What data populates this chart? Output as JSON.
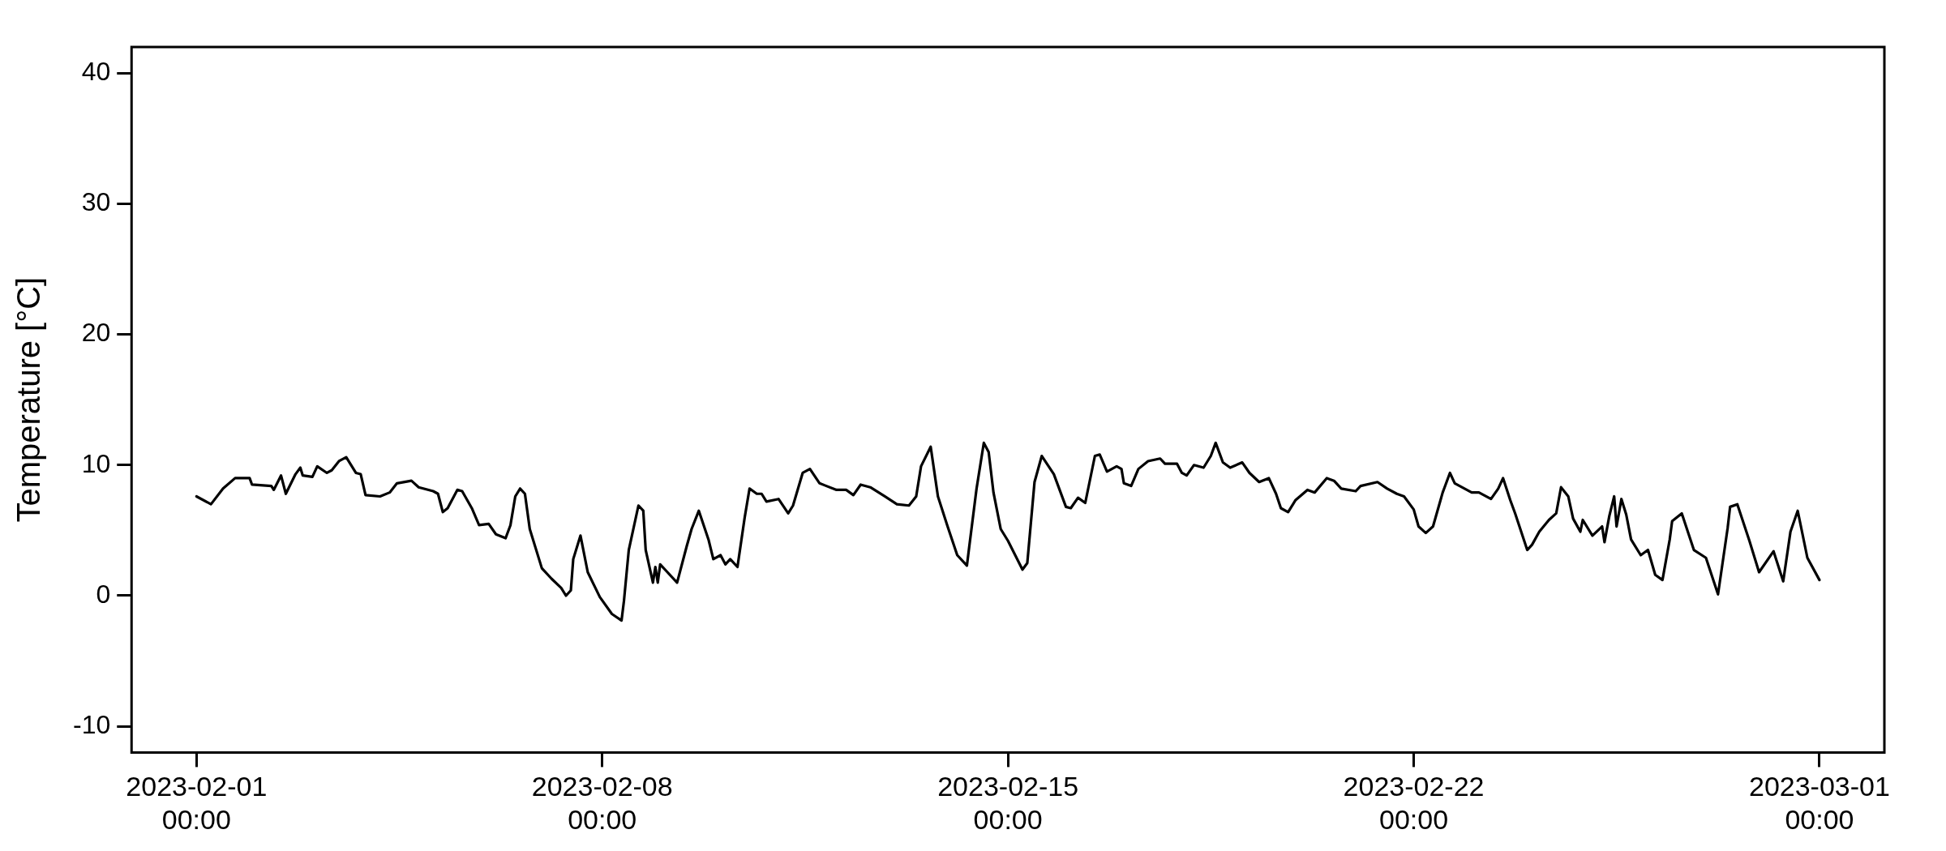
{
  "chart_data": {
    "type": "line",
    "ylabel": "Temperature [°C]",
    "marker": "none",
    "xlim": [
      "2023-01-30T21:07",
      "2023-03-02T02:53"
    ],
    "xticks": [
      {
        "value": "2023-02-01",
        "label": "2023-02-01\n00:00"
      },
      {
        "value": "2023-02-08",
        "label": "2023-02-08\n00:00"
      },
      {
        "value": "2023-02-15",
        "label": "2023-02-15\n00:00"
      },
      {
        "value": "2023-02-22",
        "label": "2023-02-22\n00:00"
      },
      {
        "value": "2023-03-01",
        "label": "2023-03-01\n00:00"
      }
    ],
    "ylim": [
      -12,
      42
    ],
    "yticks": [
      -10,
      0,
      10,
      20,
      30,
      40
    ],
    "x": [
      "2023-02-01T00:00",
      "2023-02-01T06:00",
      "2023-02-01T11:00",
      "2023-02-01T16:00",
      "2023-02-01T22:00",
      "2023-02-01T23:00",
      "2023-02-02T07:00",
      "2023-02-02T08:00",
      "2023-02-02T11:00",
      "2023-02-02T13:00",
      "2023-02-02T17:00",
      "2023-02-02T19:00",
      "2023-02-02T20:00",
      "2023-02-03T00:00",
      "2023-02-03T02:00",
      "2023-02-03T06:00",
      "2023-02-03T08:00",
      "2023-02-03T11:00",
      "2023-02-03T14:00",
      "2023-02-03T18:00",
      "2023-02-03T20:00",
      "2023-02-03T22:00",
      "2023-02-04T04:00",
      "2023-02-04T08:00",
      "2023-02-04T11:00",
      "2023-02-04T17:00",
      "2023-02-04T20:00",
      "2023-02-05T02:00",
      "2023-02-05T04:00",
      "2023-02-05T06:00",
      "2023-02-05T08:00",
      "2023-02-05T12:00",
      "2023-02-05T14:00",
      "2023-02-05T18:00",
      "2023-02-05T21:00",
      "2023-02-06T01:00",
      "2023-02-06T04:00",
      "2023-02-06T08:00",
      "2023-02-06T10:00",
      "2023-02-06T12:00",
      "2023-02-06T14:00",
      "2023-02-06T16:00",
      "2023-02-06T18:00",
      "2023-02-06T23:00",
      "2023-02-07T03:00",
      "2023-02-07T07:00",
      "2023-02-07T09:00",
      "2023-02-07T11:00",
      "2023-02-07T12:00",
      "2023-02-07T15:00",
      "2023-02-07T18:00",
      "2023-02-07T23:00",
      "2023-02-08T04:00",
      "2023-02-08T08:00",
      "2023-02-08T09:00",
      "2023-02-08T11:00",
      "2023-02-08T15:00",
      "2023-02-08T17:00",
      "2023-02-08T18:00",
      "2023-02-08T21:00",
      "2023-02-08T22:00",
      "2023-02-08T23:00",
      "2023-02-09T00:00",
      "2023-02-09T03:00",
      "2023-02-09T07:00",
      "2023-02-09T11:00",
      "2023-02-09T13:00",
      "2023-02-09T16:00",
      "2023-02-09T20:00",
      "2023-02-09T22:00",
      "2023-02-10T01:00",
      "2023-02-10T03:00",
      "2023-02-10T05:00",
      "2023-02-10T08:00",
      "2023-02-10T11:00",
      "2023-02-10T13:00",
      "2023-02-10T16:00",
      "2023-02-10T18:00",
      "2023-02-10T20:00",
      "2023-02-11T01:00",
      "2023-02-11T05:00",
      "2023-02-11T07:00",
      "2023-02-11T11:00",
      "2023-02-11T14:00",
      "2023-02-11T18:00",
      "2023-02-12T01:00",
      "2023-02-12T05:00",
      "2023-02-12T08:00",
      "2023-02-12T11:00",
      "2023-02-12T15:00",
      "2023-02-12T21:00",
      "2023-02-13T02:00",
      "2023-02-13T07:00",
      "2023-02-13T10:00",
      "2023-02-13T12:00",
      "2023-02-13T16:00",
      "2023-02-13T19:00",
      "2023-02-13T23:00",
      "2023-02-14T03:00",
      "2023-02-14T07:00",
      "2023-02-14T08:00",
      "2023-02-14T11:00",
      "2023-02-14T14:00",
      "2023-02-14T16:00",
      "2023-02-14T18:00",
      "2023-02-14T21:00",
      "2023-02-15T00:00",
      "2023-02-15T06:00",
      "2023-02-15T08:00",
      "2023-02-15T11:00",
      "2023-02-15T14:00",
      "2023-02-15T19:00",
      "2023-02-16T00:00",
      "2023-02-16T02:00",
      "2023-02-16T05:00",
      "2023-02-16T08:00",
      "2023-02-16T12:00",
      "2023-02-16T14:00",
      "2023-02-16T17:00",
      "2023-02-16T21:00",
      "2023-02-16T23:00",
      "2023-02-17T00:00",
      "2023-02-17T03:00",
      "2023-02-17T06:00",
      "2023-02-17T10:00",
      "2023-02-17T15:00",
      "2023-02-17T17:00",
      "2023-02-17T22:00",
      "2023-02-18T00:00",
      "2023-02-18T02:00",
      "2023-02-18T05:00",
      "2023-02-18T09:00",
      "2023-02-18T12:00",
      "2023-02-18T14:00",
      "2023-02-18T17:00",
      "2023-02-18T20:00",
      "2023-02-19T01:00",
      "2023-02-19T04:00",
      "2023-02-19T08:00",
      "2023-02-19T12:00",
      "2023-02-19T15:00",
      "2023-02-19T17:00",
      "2023-02-19T20:00",
      "2023-02-19T23:00",
      "2023-02-20T04:00",
      "2023-02-20T07:00",
      "2023-02-20T12:00",
      "2023-02-20T15:00",
      "2023-02-20T18:00",
      "2023-02-21T00:00",
      "2023-02-21T02:00",
      "2023-02-21T09:00",
      "2023-02-21T13:00",
      "2023-02-21T17:00",
      "2023-02-21T20:00",
      "2023-02-22T00:00",
      "2023-02-22T02:00",
      "2023-02-22T05:00",
      "2023-02-22T08:00",
      "2023-02-22T12:00",
      "2023-02-22T15:00",
      "2023-02-22T17:00",
      "2023-02-23T00:00",
      "2023-02-23T03:00",
      "2023-02-23T08:00",
      "2023-02-23T11:00",
      "2023-02-23T13:00",
      "2023-02-23T16:00",
      "2023-02-23T18:00",
      "2023-02-23T23:00",
      "2023-02-24T01:00",
      "2023-02-24T04:00",
      "2023-02-24T08:00",
      "2023-02-24T11:00",
      "2023-02-24T13:00",
      "2023-02-24T16:00",
      "2023-02-24T18:00",
      "2023-02-24T21:00",
      "2023-02-24T22:00",
      "2023-02-25T02:00",
      "2023-02-25T06:00",
      "2023-02-25T07:00",
      "2023-02-25T09:00",
      "2023-02-25T11:00",
      "2023-02-25T12:00",
      "2023-02-25T14:00",
      "2023-02-25T16:00",
      "2023-02-25T18:00",
      "2023-02-25T22:00",
      "2023-02-26T01:00",
      "2023-02-26T04:00",
      "2023-02-26T07:00",
      "2023-02-26T10:00",
      "2023-02-26T11:00",
      "2023-02-26T15:00",
      "2023-02-26T20:00",
      "2023-02-27T01:00",
      "2023-02-27T06:00",
      "2023-02-27T10:00",
      "2023-02-27T11:00",
      "2023-02-27T14:00",
      "2023-02-27T19:00",
      "2023-02-27T23:00",
      "2023-02-28T05:00",
      "2023-02-28T09:00",
      "2023-02-28T12:00",
      "2023-02-28T15:00",
      "2023-02-28T19:00",
      "2023-03-01T00:00"
    ],
    "series": [
      {
        "color": "#000000",
        "values": [
          7.6,
          7.0,
          8.2,
          9.0,
          9.0,
          8.5,
          8.4,
          8.1,
          9.2,
          7.8,
          9.3,
          9.8,
          9.2,
          9.1,
          9.9,
          9.4,
          9.6,
          10.3,
          10.6,
          9.4,
          9.3,
          7.7,
          7.6,
          7.9,
          8.6,
          8.8,
          8.3,
          8.0,
          7.8,
          6.4,
          6.7,
          8.1,
          8.0,
          6.7,
          5.4,
          5.5,
          4.7,
          4.4,
          5.4,
          7.6,
          8.2,
          7.8,
          5.1,
          2.1,
          1.3,
          0.6,
          0.0,
          0.4,
          2.8,
          4.6,
          1.8,
          -0.1,
          -1.4,
          -1.9,
          -0.4,
          3.5,
          6.9,
          6.5,
          3.5,
          1.0,
          2.2,
          1.0,
          2.4,
          1.8,
          1.0,
          3.8,
          5.1,
          6.5,
          4.3,
          2.8,
          3.1,
          2.4,
          2.8,
          2.2,
          6.0,
          8.2,
          7.8,
          7.8,
          7.2,
          7.4,
          6.3,
          6.9,
          9.4,
          9.7,
          8.6,
          8.1,
          8.1,
          7.7,
          8.5,
          8.3,
          7.6,
          7.0,
          6.9,
          7.6,
          9.9,
          11.4,
          7.6,
          5.3,
          3.1,
          2.3,
          3.8,
          8.2,
          11.7,
          11.0,
          7.9,
          5.1,
          4.2,
          2.0,
          2.5,
          8.7,
          10.7,
          9.3,
          6.8,
          6.7,
          7.5,
          7.1,
          10.7,
          10.8,
          9.5,
          9.9,
          9.7,
          8.6,
          8.4,
          9.7,
          10.3,
          10.5,
          10.1,
          10.1,
          9.4,
          9.2,
          10.0,
          9.8,
          10.7,
          11.7,
          10.2,
          9.8,
          10.2,
          9.4,
          8.7,
          9.0,
          7.8,
          6.7,
          6.4,
          7.3,
          8.1,
          7.9,
          9.0,
          8.8,
          8.2,
          8.0,
          8.4,
          8.7,
          8.2,
          7.8,
          7.6,
          6.6,
          5.3,
          4.8,
          5.3,
          7.9,
          9.4,
          8.6,
          7.9,
          7.9,
          7.4,
          8.2,
          9.0,
          7.3,
          6.3,
          3.5,
          3.9,
          4.9,
          5.8,
          6.3,
          8.3,
          7.6,
          5.9,
          4.9,
          5.8,
          4.6,
          5.3,
          4.1,
          6.1,
          7.6,
          5.3,
          7.4,
          6.2,
          4.3,
          3.1,
          3.5,
          1.6,
          1.2,
          4.3,
          5.7,
          6.3,
          3.5,
          2.9,
          0.1,
          5.2,
          6.8,
          7.0,
          4.2,
          1.8,
          3.4,
          1.1,
          4.9,
          6.5,
          2.9,
          1.2
        ]
      }
    ]
  }
}
